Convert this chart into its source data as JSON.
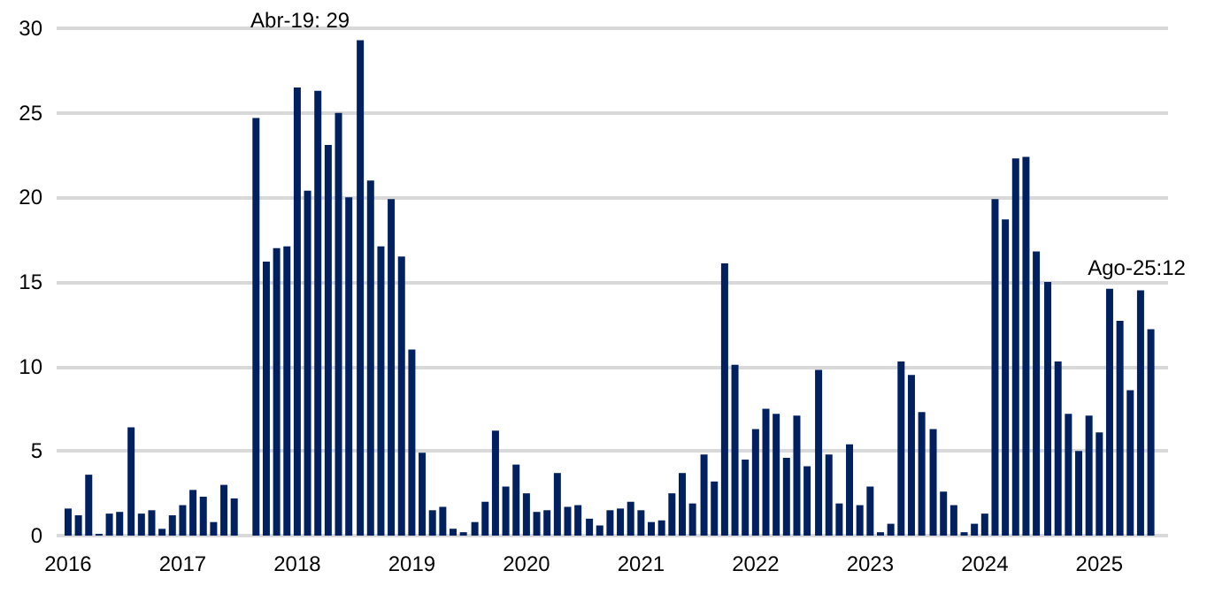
{
  "chart_data": {
    "type": "bar",
    "color": "#002060",
    "x": [
      2016.0,
      2016.09,
      2016.18,
      2016.27,
      2016.36,
      2016.45,
      2016.55,
      2016.64,
      2016.73,
      2016.82,
      2016.91,
      2017.0,
      2017.09,
      2017.18,
      2017.27,
      2017.36,
      2017.45,
      2017.55,
      2017.64,
      2017.73,
      2017.82,
      2017.91,
      2018.0,
      2018.09,
      2018.18,
      2018.27,
      2018.36,
      2018.45,
      2018.55,
      2018.64,
      2018.73,
      2018.82,
      2018.91,
      2019.0,
      2019.09,
      2019.18,
      2019.27,
      2019.36,
      2019.45,
      2019.55,
      2019.64,
      2019.73,
      2019.82,
      2019.91,
      2020.0,
      2020.09,
      2020.18,
      2020.27,
      2020.36,
      2020.45,
      2020.55,
      2020.64,
      2020.73,
      2020.82,
      2020.91,
      2021.0,
      2021.09,
      2021.18,
      2021.27,
      2021.36,
      2021.45,
      2021.55,
      2021.64,
      2021.73,
      2021.82,
      2021.91,
      2022.0,
      2022.09,
      2022.18,
      2022.27,
      2022.36,
      2022.45,
      2022.55,
      2022.64,
      2022.73,
      2022.82,
      2022.91,
      2023.0,
      2023.09,
      2023.18,
      2023.27,
      2023.36,
      2023.45,
      2023.55,
      2023.64,
      2023.73,
      2023.82,
      2023.91,
      2024.0,
      2024.09,
      2024.18,
      2024.27,
      2024.36,
      2024.45,
      2024.55,
      2024.64,
      2024.73,
      2024.82,
      2024.91,
      2025.0,
      2025.09,
      2025.18,
      2025.27,
      2025.36,
      2025.45
    ],
    "values": [
      1.6,
      1.2,
      3.6,
      0.1,
      1.3,
      1.4,
      6.4,
      1.3,
      1.5,
      0.4,
      1.2,
      1.8,
      2.7,
      2.3,
      0.8,
      3.0,
      2.2,
      null,
      24.7,
      16.2,
      17.0,
      17.1,
      26.5,
      20.4,
      26.3,
      23.1,
      25.0,
      20.0,
      29.3,
      21.0,
      17.1,
      19.9,
      16.5,
      11.0,
      4.9,
      1.5,
      1.7,
      0.4,
      0.2,
      0.8,
      2.0,
      6.2,
      2.9,
      4.2,
      2.5,
      1.4,
      1.5,
      3.7,
      1.7,
      1.8,
      1.0,
      0.6,
      1.5,
      1.6,
      2.0,
      1.5,
      0.8,
      0.9,
      2.5,
      3.7,
      1.9,
      4.8,
      3.2,
      16.1,
      10.1,
      4.5,
      6.3,
      7.5,
      7.2,
      4.6,
      7.1,
      4.1,
      9.8,
      4.8,
      1.9,
      5.4,
      1.8,
      2.9,
      0.2,
      0.7,
      10.3,
      9.5,
      7.3,
      6.3,
      2.6,
      1.8,
      0.2,
      0.7,
      1.3,
      19.9,
      18.7,
      22.3,
      22.4,
      16.8,
      15.0,
      10.3,
      7.2,
      5.0,
      7.1,
      6.1,
      14.6,
      12.7,
      8.6,
      14.5,
      12.2
    ],
    "xlim": [
      2015.9,
      2025.6
    ],
    "xticks": [
      2016,
      2017,
      2018,
      2019,
      2020,
      2021,
      2022,
      2023,
      2024,
      2025
    ],
    "ylim": [
      0,
      30
    ],
    "yticks": [
      0,
      5,
      10,
      15,
      20,
      25,
      30
    ],
    "grid": "y",
    "annotations": [
      {
        "text": "Abr-19: 29",
        "x": 2018.55,
        "y": 29.3
      },
      {
        "text": "Ago-25:12",
        "x": 2025.45,
        "y": 12.2
      }
    ]
  }
}
